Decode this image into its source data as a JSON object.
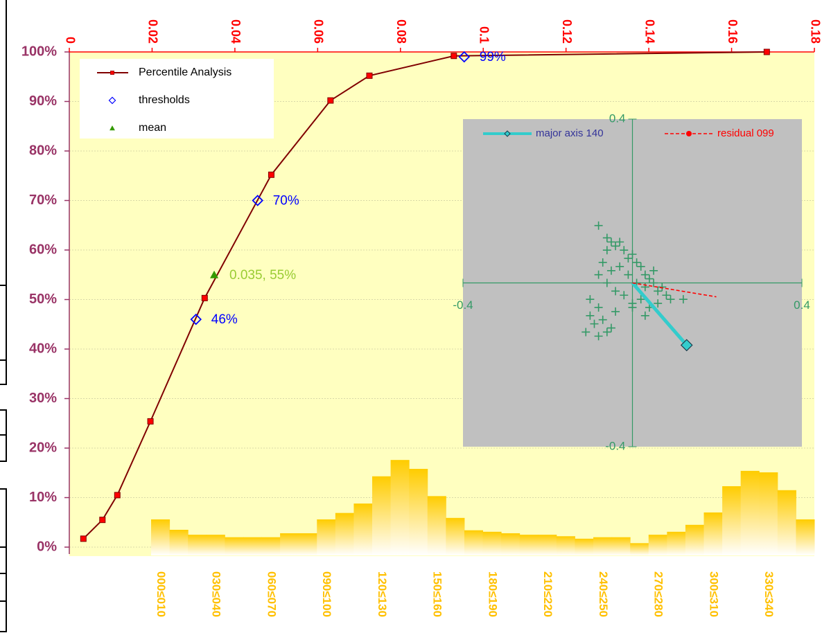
{
  "chart_data": [
    {
      "type": "line",
      "xlim": [
        0,
        0.18
      ],
      "xticks": [
        0,
        0.02,
        0.04,
        0.06,
        0.08,
        0.1,
        0.12,
        0.14,
        0.16,
        0.18
      ],
      "ylim": [
        0,
        100
      ],
      "yticks": [
        {
          "value": 0,
          "label": "0%"
        },
        {
          "value": 10,
          "label": "10%"
        },
        {
          "value": 20,
          "label": "20%"
        },
        {
          "value": 30,
          "label": "30%"
        },
        {
          "value": 40,
          "label": "40%"
        },
        {
          "value": 50,
          "label": "50%"
        },
        {
          "value": 60,
          "label": "60%"
        },
        {
          "value": 70,
          "label": "70%"
        },
        {
          "value": 80,
          "label": "80%"
        },
        {
          "value": 90,
          "label": "90%"
        },
        {
          "value": 100,
          "label": "100%"
        }
      ],
      "grid": true,
      "legend": "upper left",
      "series": [
        {
          "name": "Percentile Analysis",
          "color": "#800000",
          "marker_color": "#ff0000",
          "marker": "square",
          "line": true,
          "x": [
            0.0034,
            0.008,
            0.0116,
            0.0196,
            0.0327,
            0.0488,
            0.0631,
            0.0725,
            0.0929,
            0.1685
          ],
          "values": [
            1.7,
            5.5,
            10.5,
            25.4,
            50.3,
            75.2,
            90.2,
            95.2,
            99.2,
            100
          ]
        },
        {
          "name": "thresholds",
          "color": "#0000ff",
          "marker_color": "#0000ff",
          "marker": "diamond",
          "line": false,
          "x": [
            0.0306,
            0.0455,
            0.0954
          ],
          "values": [
            46,
            70,
            99
          ],
          "value_labels": [
            "46%",
            "70%",
            "99%"
          ]
        },
        {
          "name": "mean",
          "color": "#99cc33",
          "marker_color": "#339900",
          "marker": "triangle",
          "line": false,
          "x": [
            0.035
          ],
          "values": [
            55
          ],
          "value_labels": [
            "0.035, 55%"
          ]
        }
      ]
    },
    {
      "type": "bar",
      "color": "#ffcc00",
      "ylim": [
        0,
        100
      ],
      "categories": [
        "000≤010",
        null,
        null,
        "030≤040",
        null,
        null,
        "060≤070",
        null,
        null,
        "090≤100",
        null,
        null,
        "120≤130",
        null,
        null,
        "150≤160",
        null,
        null,
        "180≤190",
        null,
        null,
        "210≤220",
        null,
        null,
        "240≤250",
        null,
        null,
        "270≤280",
        null,
        null,
        "300≤310",
        null,
        null,
        "330≤340",
        null,
        null
      ],
      "values": [
        5.6,
        3.5,
        2.5,
        2.5,
        2,
        2,
        2,
        2.8,
        2.8,
        5.6,
        6.9,
        8.8,
        14.3,
        17.6,
        15.8,
        10.3,
        5.9,
        3.4,
        3.1,
        2.8,
        2.5,
        2.5,
        2.2,
        1.7,
        2,
        2,
        0.8,
        2.5,
        3.1,
        4.5,
        7,
        12.3,
        15.4,
        15.1,
        11.5,
        5.6
      ]
    },
    {
      "type": "scatter",
      "xlim": [
        -0.4,
        0.4
      ],
      "ylim": [
        -0.4,
        0.4
      ],
      "xticks": [
        -0.4,
        0.4
      ],
      "yticks": [
        -0.4,
        0.4
      ],
      "series": [
        {
          "color": "#339966",
          "marker": "plus",
          "line": false,
          "x": [
            -0.08,
            -0.07,
            -0.06,
            -0.05,
            -0.04,
            -0.03,
            -0.02,
            -0.01,
            0,
            0.01,
            0.02,
            0.03,
            0.04,
            0.05,
            0.06,
            0.07,
            0.08,
            0.09,
            -0.06,
            -0.04,
            -0.02,
            0,
            0.02,
            0.04,
            0.06,
            -0.05,
            -0.03,
            -0.01,
            0.01,
            0.03,
            0.05,
            -0.08,
            -0.1,
            -0.09,
            -0.07,
            -0.06,
            -0.05,
            -0.11,
            -0.08,
            -0.04,
            0,
            0.03,
            -0.08,
            0.12,
            -0.1,
            -0.06
          ],
          "values": [
            0.02,
            0.05,
            0.08,
            0.1,
            0.09,
            0.1,
            0.08,
            0.06,
            0.07,
            0.05,
            0.04,
            0.02,
            0.01,
            0,
            -0.02,
            -0.01,
            -0.03,
            -0.04,
            0,
            -0.02,
            -0.03,
            -0.05,
            -0.04,
            -0.06,
            -0.05,
            0.03,
            0.04,
            0.02,
            0,
            -0.01,
            0.03,
            -0.06,
            -0.08,
            -0.1,
            -0.09,
            -0.12,
            -0.11,
            -0.12,
            -0.13,
            -0.07,
            -0.06,
            -0.08,
            0.14,
            -0.04,
            -0.04,
            0.11
          ]
        },
        {
          "name": "major axis 140",
          "color": "#33cccc",
          "marker": "diamond",
          "line": true,
          "x": [
            0,
            0.128
          ],
          "values": [
            0,
            -0.152
          ]
        },
        {
          "name": "residual 099",
          "color": "#ff0000",
          "marker": "dot",
          "line": true,
          "dash": true,
          "x": [
            0,
            0.198
          ],
          "values": [
            0,
            -0.034
          ]
        }
      ]
    }
  ]
}
